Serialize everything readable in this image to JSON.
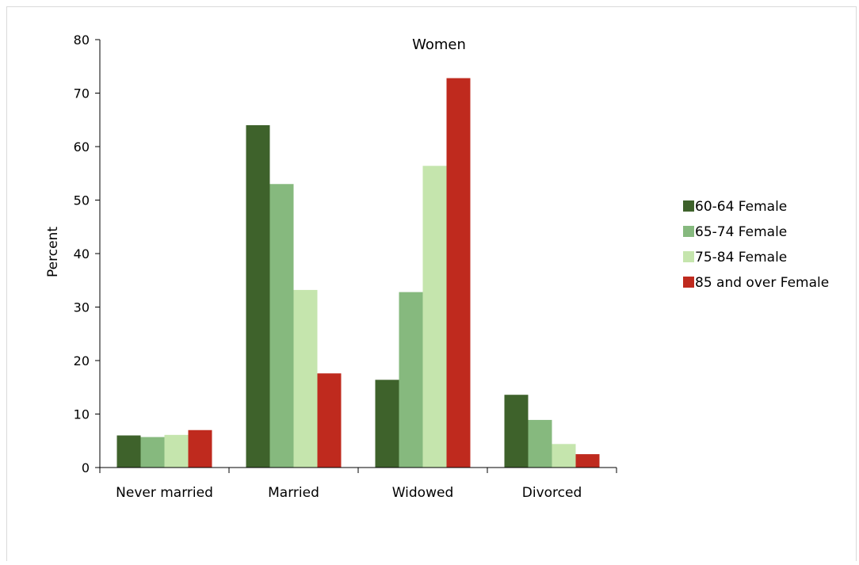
{
  "chart_data": {
    "type": "bar",
    "title": "Women",
    "xlabel": "",
    "ylabel": "Percent",
    "ylim": [
      0,
      80
    ],
    "yticks": [
      0,
      10,
      20,
      30,
      40,
      50,
      60,
      70,
      80
    ],
    "categories": [
      "Never married",
      "Married",
      "Widowed",
      "Divorced"
    ],
    "series": [
      {
        "name": "60-64 Female",
        "color": "#3e622b",
        "values": [
          6.0,
          64.0,
          16.4,
          13.6
        ]
      },
      {
        "name": "65-74 Female",
        "color": "#86b97e",
        "values": [
          5.7,
          53.0,
          32.8,
          8.9
        ]
      },
      {
        "name": "75-84 Female",
        "color": "#c5e5ad",
        "values": [
          6.1,
          33.2,
          56.4,
          4.4
        ]
      },
      {
        "name": "85 and over Female",
        "color": "#bf2a1e",
        "values": [
          7.0,
          17.6,
          72.8,
          2.5
        ]
      }
    ],
    "grid": false,
    "legend_position": "right"
  }
}
